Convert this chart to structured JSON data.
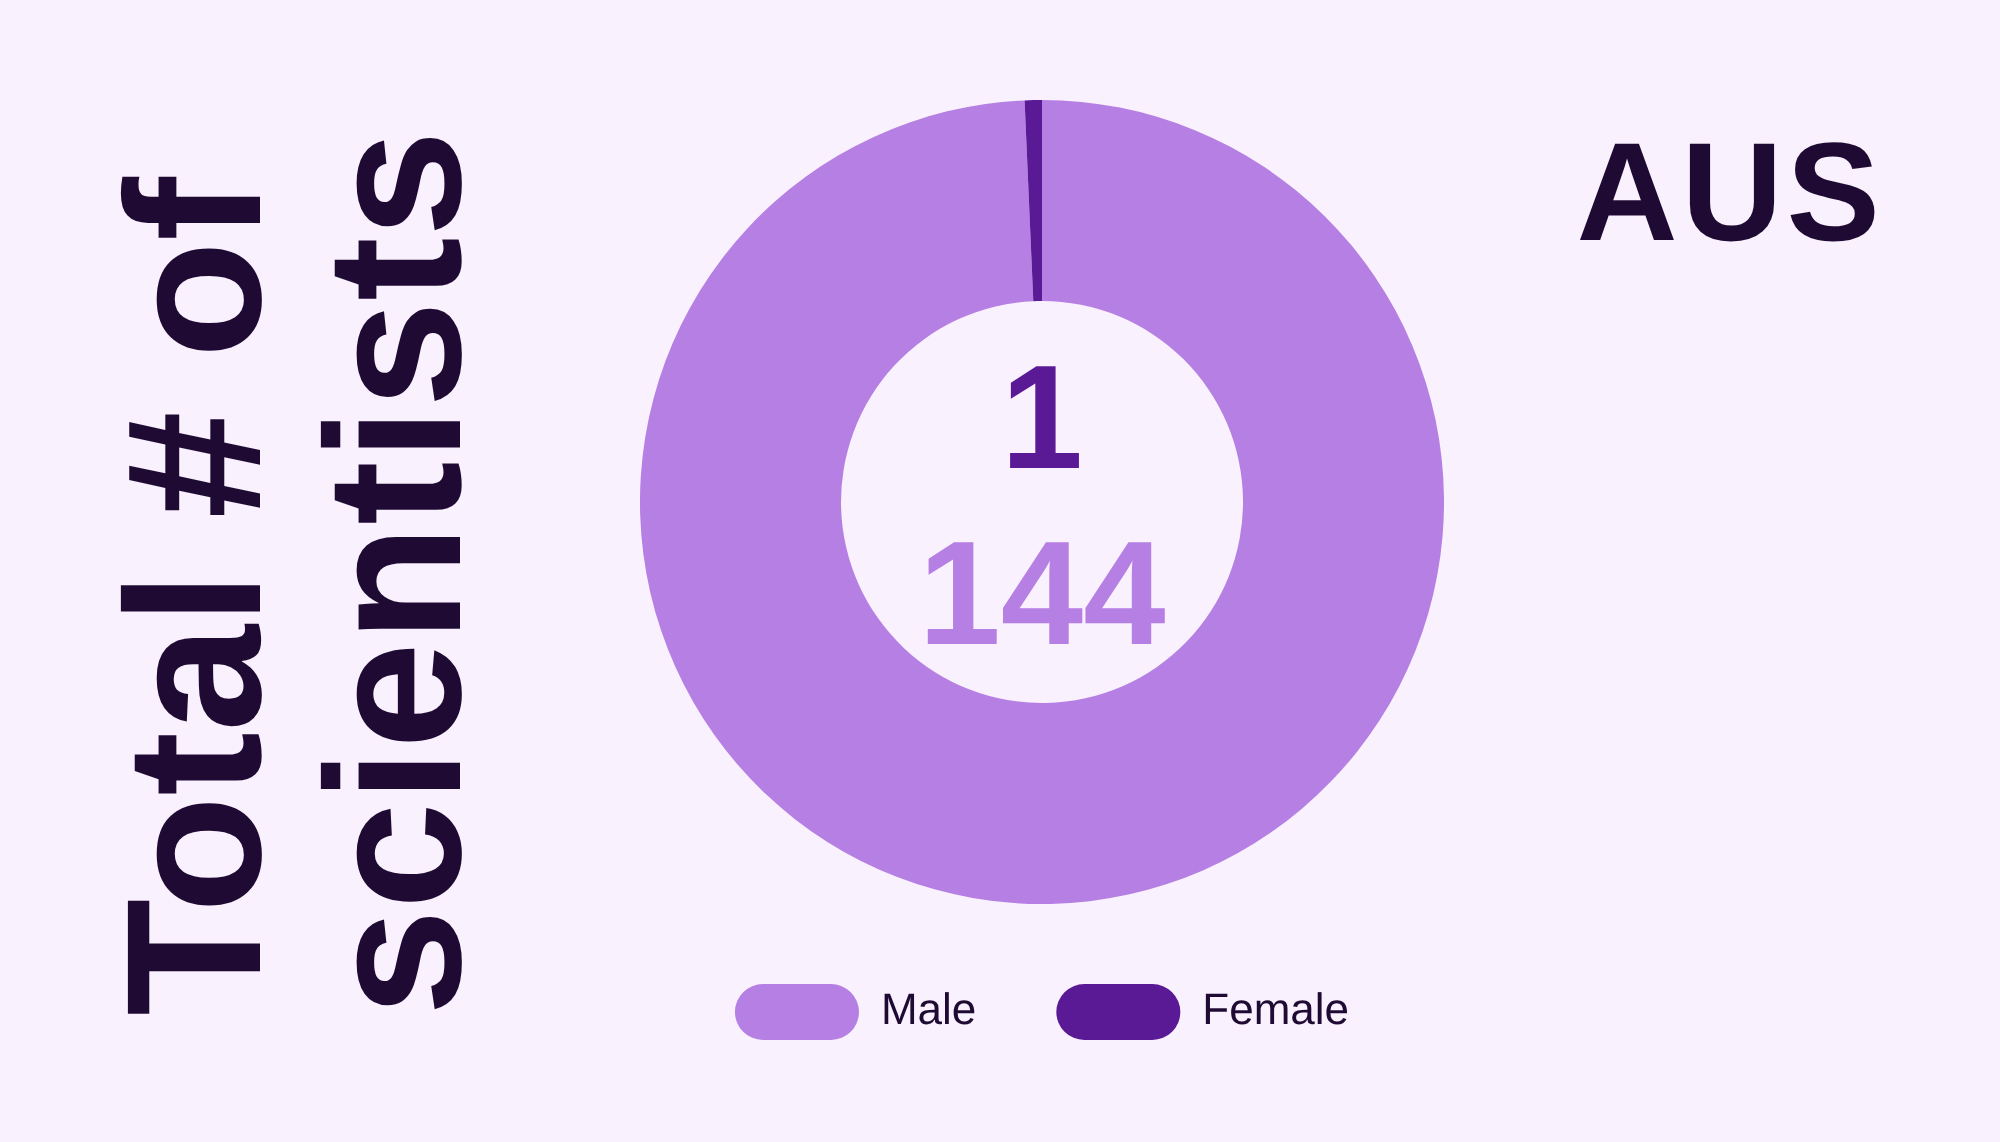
{
  "chart_data": {
    "type": "donut",
    "title": "Total # of scientists",
    "subtitle": "AUS",
    "categories": [
      "Male",
      "Female"
    ],
    "values": [
      144,
      1
    ],
    "colors": [
      "#b57fe3",
      "#5a1a96"
    ],
    "data_labels": true,
    "legend": "bottom"
  }
}
